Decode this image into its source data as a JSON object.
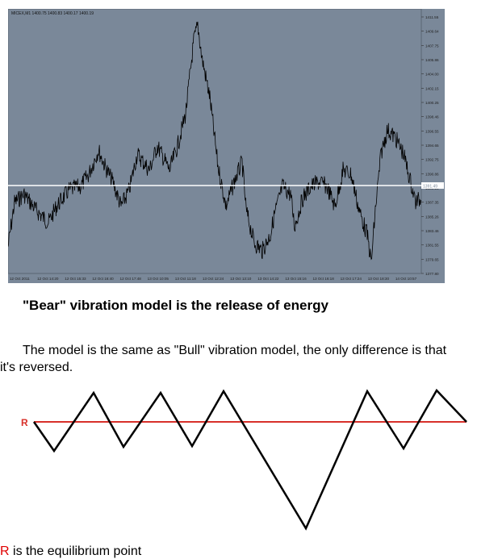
{
  "chart": {
    "header_text": "MICEX,M1  1400.75 1400.83 1400.17 1400.19",
    "background_color": "#7a8899",
    "price_color": "#000000",
    "equilibrium_line_color": "#ffffff",
    "highlighted_price": "1391.49",
    "price_ticks": [
      "1411.55",
      "1409.64",
      "1407.75",
      "1405.86",
      "1404.00",
      "1402.15",
      "1400.25",
      "1398.46",
      "1396.55",
      "1394.65",
      "1392.75",
      "1390.86",
      "1389.25",
      "1387.35",
      "1385.26",
      "1383.46",
      "1381.55",
      "1379.65",
      "1377.80"
    ],
    "time_ticks": [
      "12 Oct 2011",
      "12 Oct 14:20",
      "12 Oct 15:33",
      "12 Oct 16:40",
      "12 Oct 17:48",
      "13 Oct 10:05",
      "13 Oct 11:18",
      "13 Oct 12:24",
      "13 Oct 13:10",
      "13 Oct 14:22",
      "13 Oct 15:16",
      "13 Oct 16:18",
      "13 Oct 17:24",
      "13 Oct 18:30",
      "14 Oct 10:57"
    ]
  },
  "heading": "\"Bear\" vibration model is the release of energy",
  "paragraph_line1": "The model is the same as \"Bull\" vibration model, the only difference is that",
  "paragraph_line2": "it's reversed.",
  "diagram": {
    "label": "R",
    "line_color": "#000000",
    "equilibrium_color": "#d8302a"
  },
  "caption": {
    "letter": "R",
    "text": " is the equilibrium point"
  }
}
